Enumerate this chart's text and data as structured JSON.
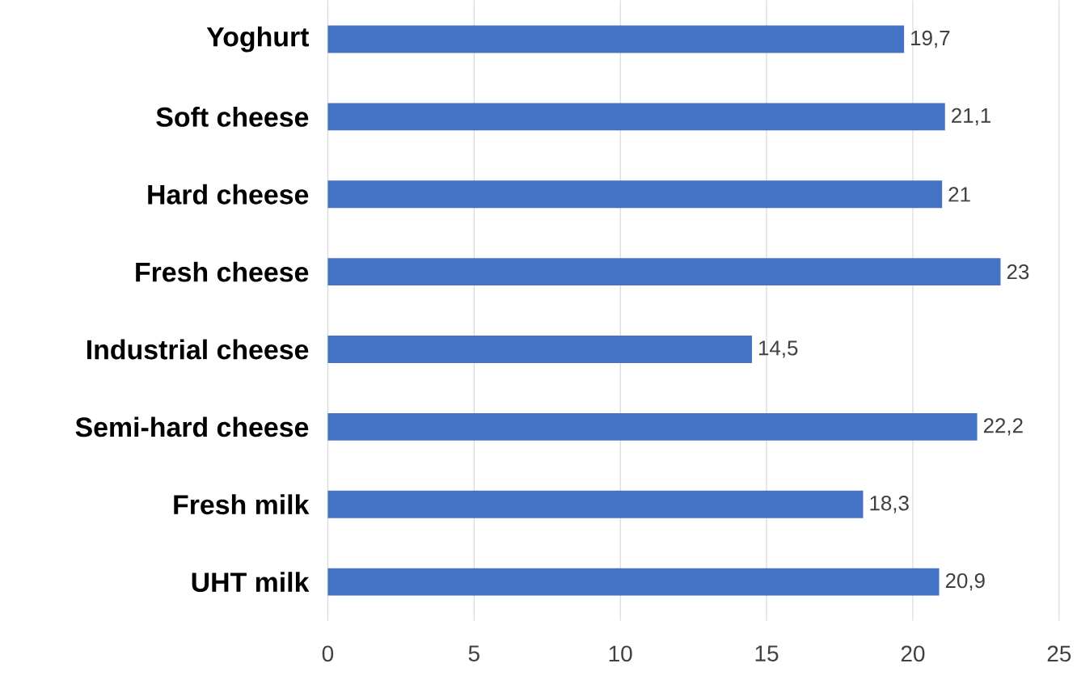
{
  "chart_data": {
    "type": "bar",
    "orientation": "horizontal",
    "categories": [
      "Yoghurt",
      "Soft cheese",
      "Hard cheese",
      "Fresh cheese",
      "Industrial cheese",
      "Semi-hard cheese",
      "Fresh milk",
      "UHT milk"
    ],
    "values": [
      19.7,
      21.1,
      21,
      23,
      14.5,
      22.2,
      18.3,
      20.9
    ],
    "value_labels": [
      "19,7",
      "21,1",
      "21",
      "23",
      "14,5",
      "22,2",
      "18,3",
      "20,9"
    ],
    "color": "#4472c4",
    "xlim": [
      0,
      25
    ],
    "xticks": [
      0,
      5,
      10,
      15,
      20,
      25
    ],
    "grid": "x"
  }
}
